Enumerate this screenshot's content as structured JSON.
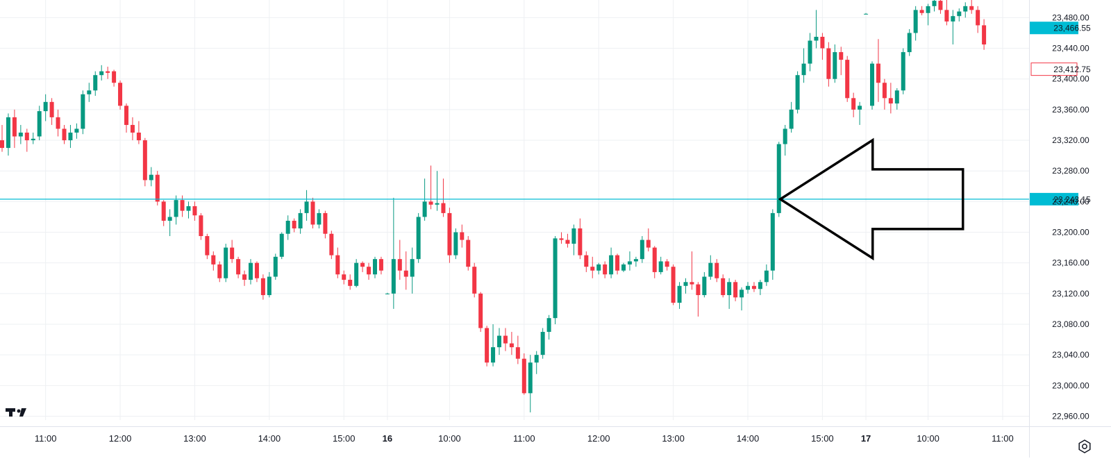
{
  "chart_data": {
    "type": "candlestick",
    "title": "",
    "xlabel": "",
    "ylabel": "",
    "ylim": [
      22955,
      23503
    ],
    "grid": true,
    "y_ticks": [
      "22,960.00",
      "23,000.00",
      "23,040.00",
      "23,080.00",
      "23,120.00",
      "23,160.00",
      "23,200.00",
      "23,240.00",
      "23,280.00",
      "23,320.00",
      "23,360.00",
      "23,400.00",
      "23,440.00",
      "23,480.00"
    ],
    "y_tick_values": [
      22960,
      23000,
      23040,
      23080,
      23120,
      23160,
      23200,
      23240,
      23280,
      23320,
      23360,
      23400,
      23440,
      23480
    ],
    "x_ticks": [
      {
        "label": "11:00",
        "bar": 7,
        "bold": false
      },
      {
        "label": "12:00",
        "bar": 19,
        "bold": false
      },
      {
        "label": "13:00",
        "bar": 31,
        "bold": false
      },
      {
        "label": "14:00",
        "bar": 43,
        "bold": false
      },
      {
        "label": "15:00",
        "bar": 55,
        "bold": false
      },
      {
        "label": "16",
        "bar": 62,
        "bold": true
      },
      {
        "label": "10:00",
        "bar": 72,
        "bold": false
      },
      {
        "label": "11:00",
        "bar": 84,
        "bold": false
      },
      {
        "label": "12:00",
        "bar": 96,
        "bold": false
      },
      {
        "label": "13:00",
        "bar": 108,
        "bold": false
      },
      {
        "label": "14:00",
        "bar": 120,
        "bold": false
      },
      {
        "label": "15:00",
        "bar": 132,
        "bold": false
      },
      {
        "label": "17",
        "bar": 139,
        "bold": true
      },
      {
        "label": "10:00",
        "bar": 149,
        "bold": false
      },
      {
        "label": "11:00",
        "bar": 161,
        "bold": false
      }
    ],
    "up_color": "#089981",
    "down_color": "#f23645",
    "horizontal_line": {
      "value": 23243.15,
      "label": "23,243.15",
      "color": "#00bcd4"
    },
    "price_labels": [
      {
        "value": 23466.55,
        "label": "23,466.55",
        "style": "filled",
        "color": "#00bcd4"
      },
      {
        "value": 23412.75,
        "label": "23,412.75",
        "style": "outline",
        "color": "#f23645"
      }
    ],
    "annotation": {
      "type": "arrow",
      "direction": "left",
      "target_bar": 125,
      "target_value": 23243.15
    },
    "candles": [
      [
        23320,
        23340,
        23305,
        23310
      ],
      [
        23310,
        23355,
        23300,
        23350
      ],
      [
        23350,
        23360,
        23310,
        23325
      ],
      [
        23325,
        23340,
        23315,
        23330
      ],
      [
        23330,
        23335,
        23305,
        23320
      ],
      [
        23320,
        23330,
        23315,
        23322
      ],
      [
        23325,
        23365,
        23320,
        23358
      ],
      [
        23358,
        23380,
        23345,
        23370
      ],
      [
        23370,
        23375,
        23340,
        23350
      ],
      [
        23350,
        23360,
        23325,
        23335
      ],
      [
        23335,
        23340,
        23315,
        23320
      ],
      [
        23320,
        23340,
        23310,
        23330
      ],
      [
        23330,
        23342,
        23322,
        23335
      ],
      [
        23335,
        23385,
        23328,
        23380
      ],
      [
        23380,
        23395,
        23370,
        23385
      ],
      [
        23385,
        23410,
        23378,
        23405
      ],
      [
        23405,
        23418,
        23398,
        23410
      ],
      [
        23410,
        23416,
        23400,
        23408
      ],
      [
        23410,
        23412,
        23390,
        23395
      ],
      [
        23395,
        23398,
        23360,
        23365
      ],
      [
        23365,
        23368,
        23330,
        23340
      ],
      [
        23340,
        23350,
        23320,
        23330
      ],
      [
        23330,
        23345,
        23315,
        23320
      ],
      [
        23320,
        23323,
        23260,
        23268
      ],
      [
        23268,
        23285,
        23260,
        23275
      ],
      [
        23275,
        23280,
        23235,
        23240
      ],
      [
        23240,
        23242,
        23208,
        23215
      ],
      [
        23215,
        23230,
        23195,
        23220
      ],
      [
        23220,
        23248,
        23210,
        23242
      ],
      [
        23242,
        23248,
        23220,
        23228
      ],
      [
        23228,
        23240,
        23218,
        23234
      ],
      [
        23234,
        23240,
        23215,
        23222
      ],
      [
        23222,
        23225,
        23190,
        23195
      ],
      [
        23195,
        23198,
        23165,
        23170
      ],
      [
        23170,
        23175,
        23150,
        23158
      ],
      [
        23158,
        23162,
        23135,
        23140
      ],
      [
        23140,
        23185,
        23135,
        23180
      ],
      [
        23180,
        23190,
        23160,
        23165
      ],
      [
        23165,
        23168,
        23140,
        23145
      ],
      [
        23145,
        23150,
        23130,
        23138
      ],
      [
        23138,
        23165,
        23132,
        23160
      ],
      [
        23160,
        23162,
        23135,
        23140
      ],
      [
        23140,
        23145,
        23112,
        23118
      ],
      [
        23118,
        23148,
        23115,
        23142
      ],
      [
        23142,
        23172,
        23138,
        23168
      ],
      [
        23168,
        23200,
        23165,
        23198
      ],
      [
        23198,
        23222,
        23190,
        23215
      ],
      [
        23215,
        23218,
        23200,
        23205
      ],
      [
        23205,
        23230,
        23198,
        23225
      ],
      [
        23225,
        23255,
        23215,
        23240
      ],
      [
        23240,
        23245,
        23205,
        23210
      ],
      [
        23210,
        23230,
        23205,
        23225
      ],
      [
        23225,
        23228,
        23192,
        23198
      ],
      [
        23198,
        23202,
        23165,
        23170
      ],
      [
        23170,
        23180,
        23140,
        23145
      ],
      [
        23145,
        23150,
        23132,
        23138
      ],
      [
        23138,
        23145,
        23125,
        23130
      ],
      [
        23130,
        23165,
        23128,
        23160
      ],
      [
        23160,
        23162,
        23148,
        23155
      ],
      [
        23155,
        23160,
        23138,
        23145
      ],
      [
        23145,
        23168,
        23140,
        23165
      ],
      [
        23165,
        23168,
        23145,
        23150
      ],
      [
        23120,
        23121,
        23119,
        23120
      ],
      [
        23120,
        23245,
        23100,
        23165
      ],
      [
        23165,
        23190,
        23138,
        23150
      ],
      [
        23150,
        23175,
        23125,
        23142
      ],
      [
        23142,
        23180,
        23120,
        23165
      ],
      [
        23165,
        23225,
        23160,
        23220
      ],
      [
        23220,
        23270,
        23215,
        23240
      ],
      [
        23240,
        23287,
        23230,
        23236
      ],
      [
        23236,
        23280,
        23228,
        23238
      ],
      [
        23238,
        23270,
        23220,
        23225
      ],
      [
        23225,
        23232,
        23160,
        23170
      ],
      [
        23170,
        23205,
        23165,
        23200
      ],
      [
        23200,
        23210,
        23180,
        23190
      ],
      [
        23190,
        23195,
        23150,
        23155
      ],
      [
        23155,
        23160,
        23115,
        23120
      ],
      [
        23120,
        23122,
        23070,
        23075
      ],
      [
        23075,
        23078,
        23025,
        23030
      ],
      [
        23030,
        23080,
        23025,
        23050
      ],
      [
        23050,
        23075,
        23040,
        23065
      ],
      [
        23065,
        23075,
        23045,
        23055
      ],
      [
        23055,
        23070,
        23040,
        23050
      ],
      [
        23050,
        23065,
        23028,
        23035
      ],
      [
        23035,
        23042,
        22988,
        22990
      ],
      [
        22990,
        23040,
        22965,
        23030
      ],
      [
        23030,
        23045,
        23015,
        23040
      ],
      [
        23040,
        23075,
        23035,
        23070
      ],
      [
        23070,
        23092,
        23060,
        23088
      ],
      [
        23088,
        23195,
        23080,
        23192
      ],
      [
        23192,
        23200,
        23185,
        23190
      ],
      [
        23190,
        23198,
        23180,
        23185
      ],
      [
        23185,
        23210,
        23170,
        23205
      ],
      [
        23205,
        23218,
        23165,
        23170
      ],
      [
        23170,
        23175,
        23148,
        23155
      ],
      [
        23155,
        23168,
        23140,
        23150
      ],
      [
        23150,
        23160,
        23145,
        23158
      ],
      [
        23158,
        23162,
        23140,
        23145
      ],
      [
        23145,
        23180,
        23140,
        23170
      ],
      [
        23170,
        23172,
        23145,
        23150
      ],
      [
        23150,
        23160,
        23148,
        23158
      ],
      [
        23158,
        23175,
        23150,
        23162
      ],
      [
        23162,
        23168,
        23155,
        23165
      ],
      [
        23165,
        23195,
        23160,
        23190
      ],
      [
        23190,
        23205,
        23175,
        23180
      ],
      [
        23180,
        23182,
        23140,
        23148
      ],
      [
        23148,
        23168,
        23145,
        23162
      ],
      [
        23162,
        23165,
        23150,
        23155
      ],
      [
        23155,
        23158,
        23105,
        23108
      ],
      [
        23108,
        23135,
        23100,
        23130
      ],
      [
        23130,
        23140,
        23120,
        23135
      ],
      [
        23135,
        23175,
        23125,
        23132
      ],
      [
        23132,
        23135,
        23090,
        23118
      ],
      [
        23118,
        23148,
        23115,
        23142
      ],
      [
        23142,
        23170,
        23138,
        23160
      ],
      [
        23160,
        23165,
        23135,
        23140
      ],
      [
        23140,
        23145,
        23115,
        23118
      ],
      [
        23118,
        23140,
        23100,
        23135
      ],
      [
        23135,
        23138,
        23110,
        23115
      ],
      [
        23115,
        23128,
        23098,
        23125
      ],
      [
        23125,
        23135,
        23120,
        23130
      ],
      [
        23130,
        23135,
        23122,
        23126
      ],
      [
        23126,
        23138,
        23118,
        23135
      ],
      [
        23135,
        23158,
        23130,
        23150
      ],
      [
        23150,
        23230,
        23138,
        23225
      ],
      [
        23225,
        23318,
        23220,
        23315
      ],
      [
        23315,
        23340,
        23300,
        23335
      ],
      [
        23335,
        23370,
        23330,
        23360
      ],
      [
        23360,
        23410,
        23355,
        23405
      ],
      [
        23405,
        23440,
        23395,
        23420
      ],
      [
        23420,
        23460,
        23410,
        23450
      ],
      [
        23450,
        23490,
        23440,
        23455
      ],
      [
        23455,
        23460,
        23425,
        23440
      ],
      [
        23440,
        23448,
        23390,
        23400
      ],
      [
        23400,
        23445,
        23395,
        23435
      ],
      [
        23435,
        23442,
        23405,
        23425
      ],
      [
        23425,
        23430,
        23370,
        23375
      ],
      [
        23375,
        23382,
        23350,
        23360
      ],
      [
        23360,
        23370,
        23340,
        23365
      ],
      [
        23485,
        23486,
        23484,
        23485
      ],
      [
        23365,
        23423,
        23360,
        23420
      ],
      [
        23420,
        23452,
        23370,
        23395
      ],
      [
        23395,
        23400,
        23360,
        23375
      ],
      [
        23375,
        23395,
        23355,
        23368
      ],
      [
        23368,
        23388,
        23360,
        23385
      ],
      [
        23385,
        23440,
        23380,
        23435
      ],
      [
        23435,
        23465,
        23430,
        23460
      ],
      [
        23460,
        23495,
        23450,
        23490
      ],
      [
        23490,
        23495,
        23483,
        23486
      ],
      [
        23486,
        23498,
        23470,
        23495
      ],
      [
        23495,
        23503,
        23488,
        23502
      ],
      [
        23502,
        23503,
        23485,
        23490
      ],
      [
        23490,
        23503,
        23470,
        23475
      ],
      [
        23475,
        23490,
        23445,
        23482
      ],
      [
        23482,
        23492,
        23475,
        23488
      ],
      [
        23488,
        23500,
        23480,
        23495
      ],
      [
        23495,
        23503,
        23485,
        23490
      ],
      [
        23490,
        23495,
        23460,
        23470
      ],
      [
        23470,
        23478,
        23438,
        23445
      ]
    ]
  }
}
